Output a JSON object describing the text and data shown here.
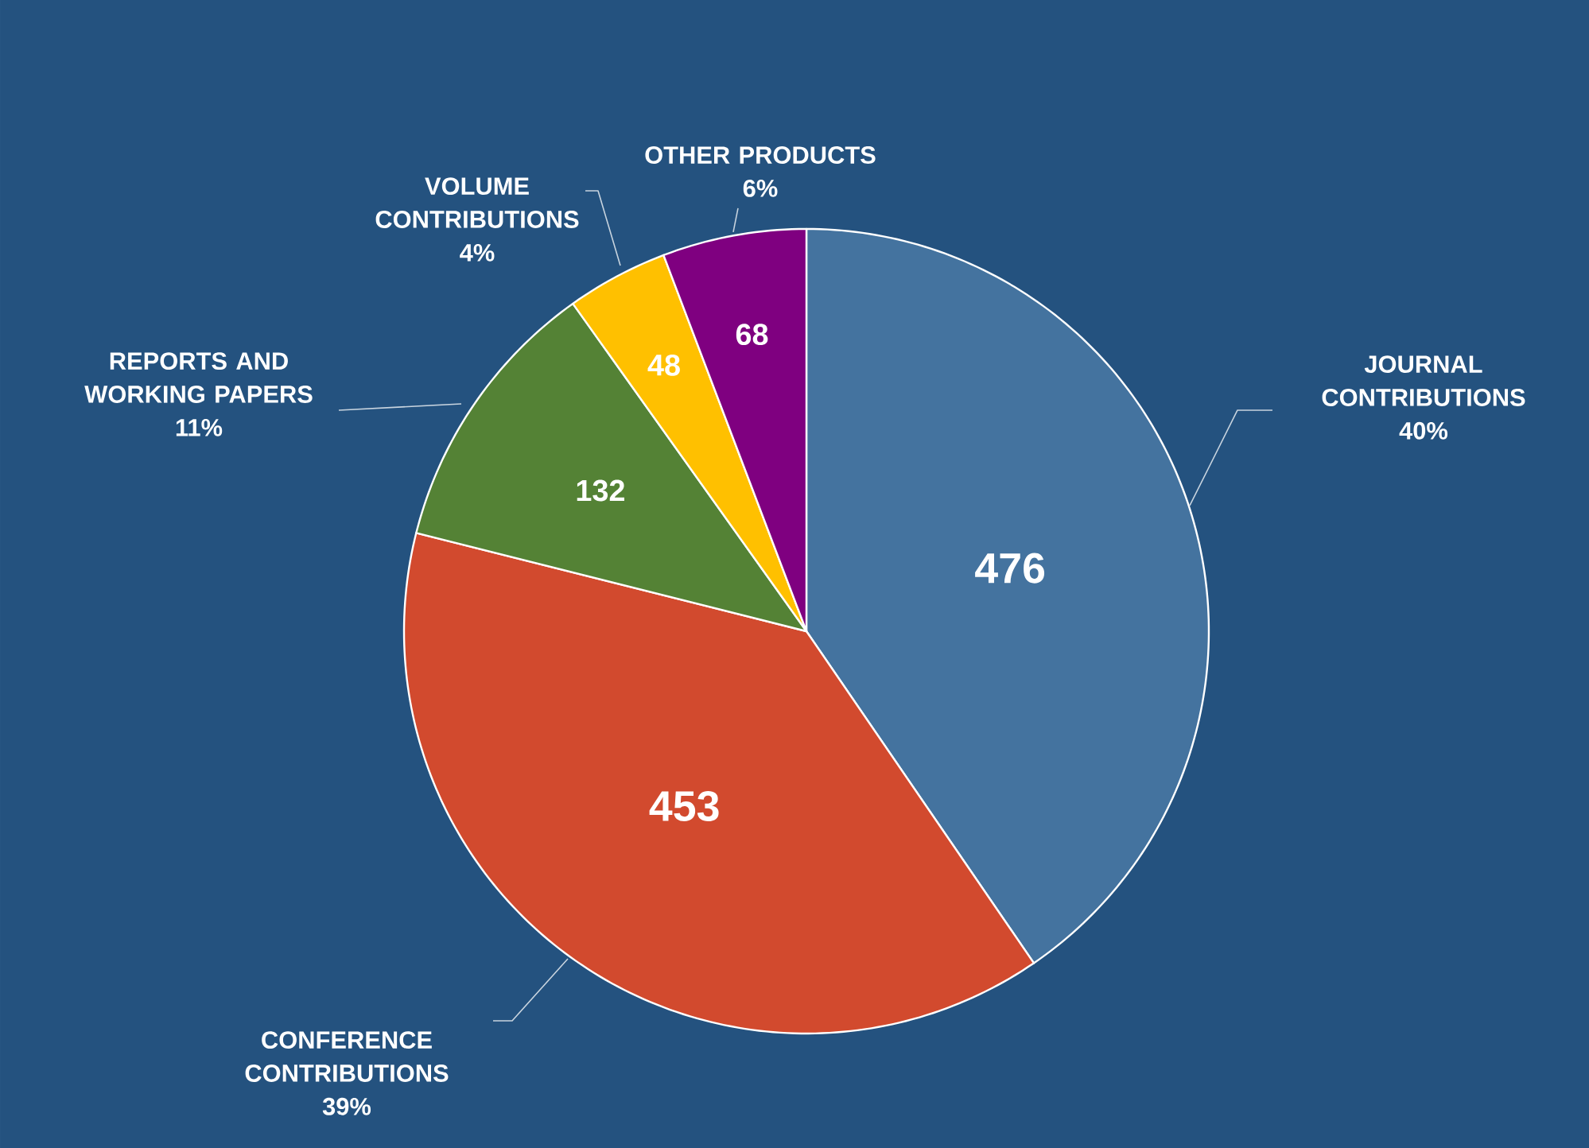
{
  "chart_data": {
    "type": "pie",
    "categories": [
      "JOURNAL CONTRIBUTIONS",
      "CONFERENCE CONTRIBUTIONS",
      "REPORTS AND WORKING PAPERS",
      "VOLUME CONTRIBUTIONS",
      "OTHER PRODUCTS"
    ],
    "values": [
      476,
      453,
      132,
      48,
      68
    ],
    "colors": [
      "#44739f",
      "#d24a2e",
      "#548235",
      "#ffc000",
      "#7f0080"
    ],
    "value_labels": [
      "476",
      "453",
      "132",
      "48",
      "68"
    ],
    "annotations": [
      "40%",
      "39%",
      "11%",
      "4%",
      "6%"
    ]
  }
}
